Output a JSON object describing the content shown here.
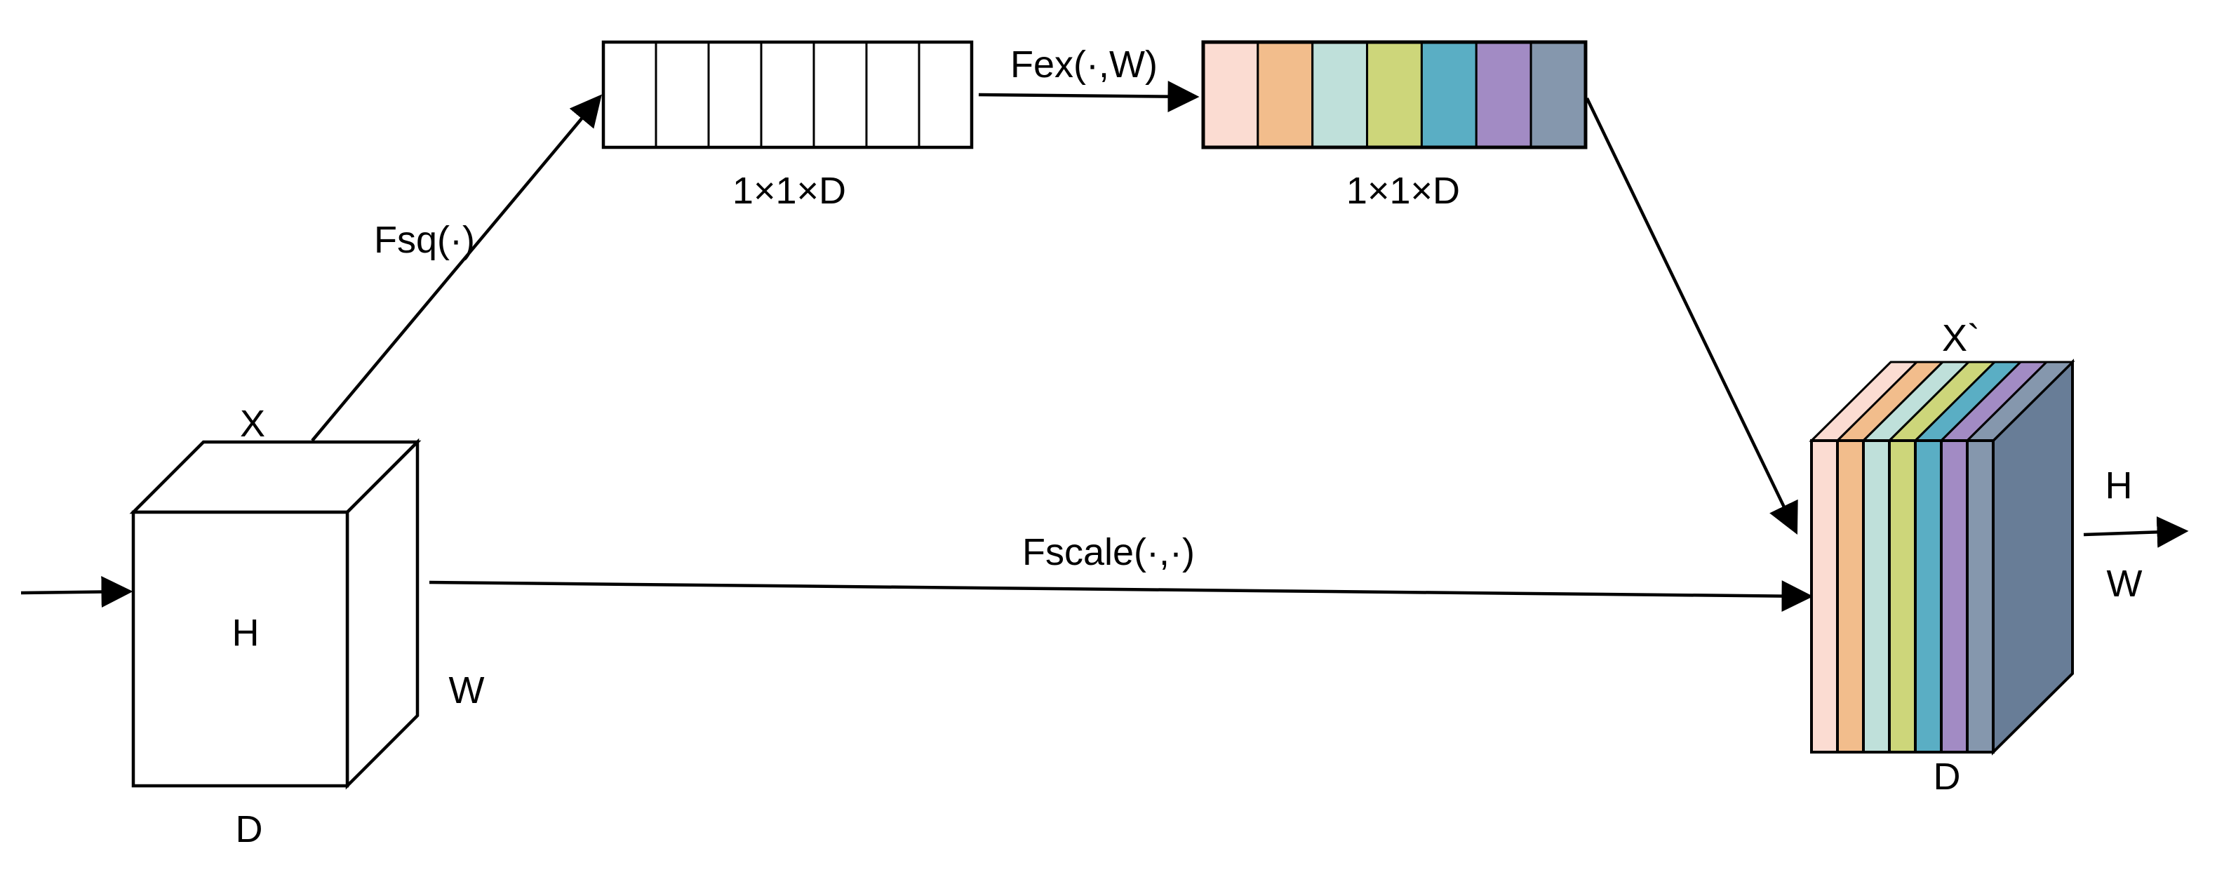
{
  "input_block": {
    "name_label": "X",
    "height_label": "H",
    "width_label": "W",
    "depth_label": "D"
  },
  "squeeze": {
    "label": "Fsq(·)"
  },
  "squeeze_vector": {
    "label": "1×1×D",
    "cell_count": 7
  },
  "excitation": {
    "label": "Fex(·,W)"
  },
  "excitation_vector": {
    "label": "1×1×D",
    "colors": [
      "#fbdcd2",
      "#f2bd8c",
      "#bfe0da",
      "#cdd67a",
      "#5aaec4",
      "#a28bc4",
      "#8597ad"
    ]
  },
  "scale": {
    "label": "Fscale(·,·)"
  },
  "output_block": {
    "name_label": "X`",
    "height_label": "H",
    "width_label": "W",
    "depth_label": "D",
    "slice_colors": [
      "#fbdcd2",
      "#f2bd8c",
      "#bfe0da",
      "#cdd67a",
      "#5aaec4",
      "#a28bc4",
      "#8597ad"
    ],
    "back_color": "#687d97"
  },
  "colors": {
    "stroke": "#000000",
    "background": "#ffffff"
  }
}
